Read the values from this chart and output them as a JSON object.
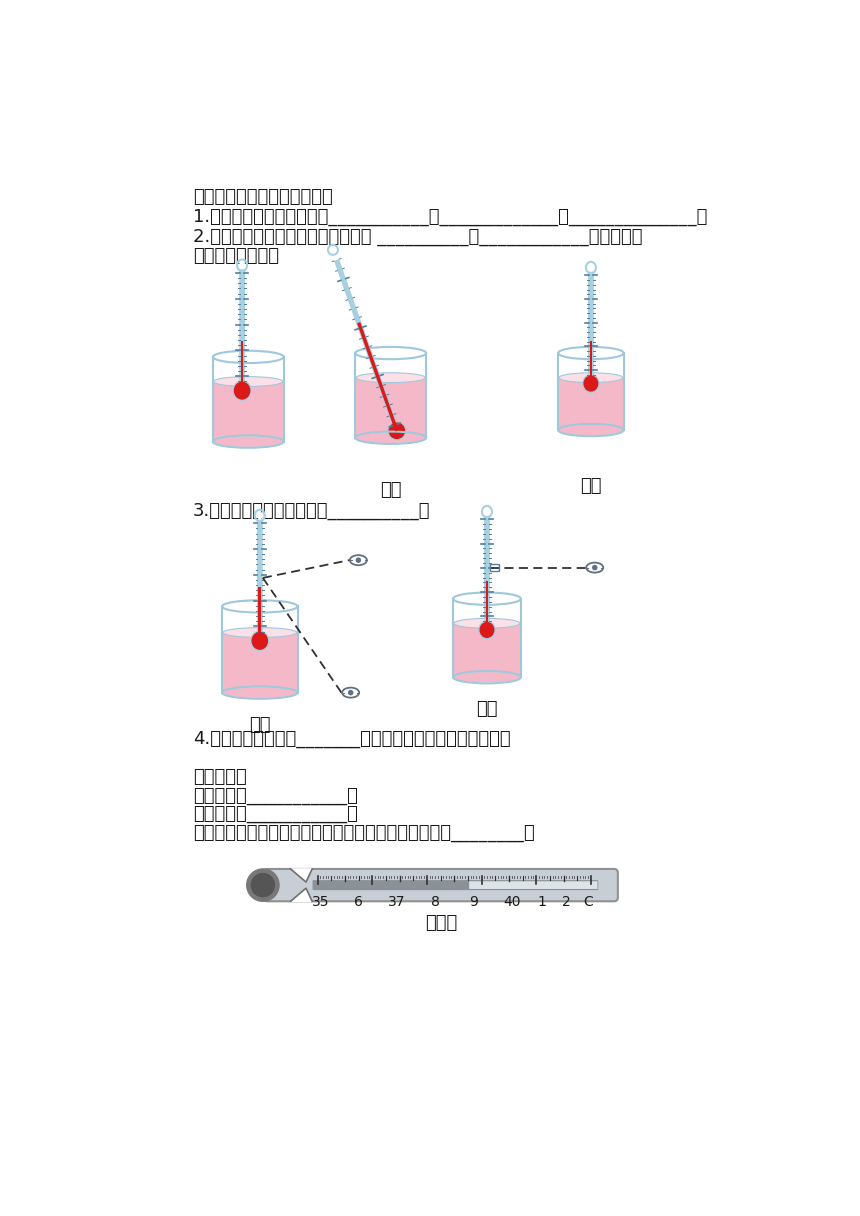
{
  "bg_color": "#ffffff",
  "title1": "四、实验室温度计的使用方法",
  "line1": "1.使用前，先观察温度计的___________、_____________和______________；",
  "line2a": "2.测量时，温度计的玻璃泡不能接触 __________和____________，且要与被",
  "line2b": "测液体充分接触；",
  "label_wrong1": "错误",
  "label_correct1": "正确",
  "line3": "3.读数时，视线要与温度计__________；",
  "label_wrong2": "错误",
  "label_correct2": "正确",
  "line4": "4.读数时，温度计要_______被测液体中，不得取出后读数。",
  "title2": "五、体温计",
  "lineA": "测量范围：___________；",
  "lineB": "测温液体：___________；",
  "lineC": "体温计可以离开人体读数，因为它具有特殊结构，叫做________。",
  "thermo_label": "体温计",
  "thermo_numbers": [
    "35",
    "6",
    "37",
    "8",
    "9",
    "40",
    "1",
    "2",
    "C"
  ],
  "pink_color": "#f5b8c8",
  "pink_light": "#fce0e8",
  "beaker_stroke": "#a0c8dc",
  "thermo_glass": "#a8d0e0",
  "thermo_red": "#dc1818",
  "eye_color": "#607080"
}
